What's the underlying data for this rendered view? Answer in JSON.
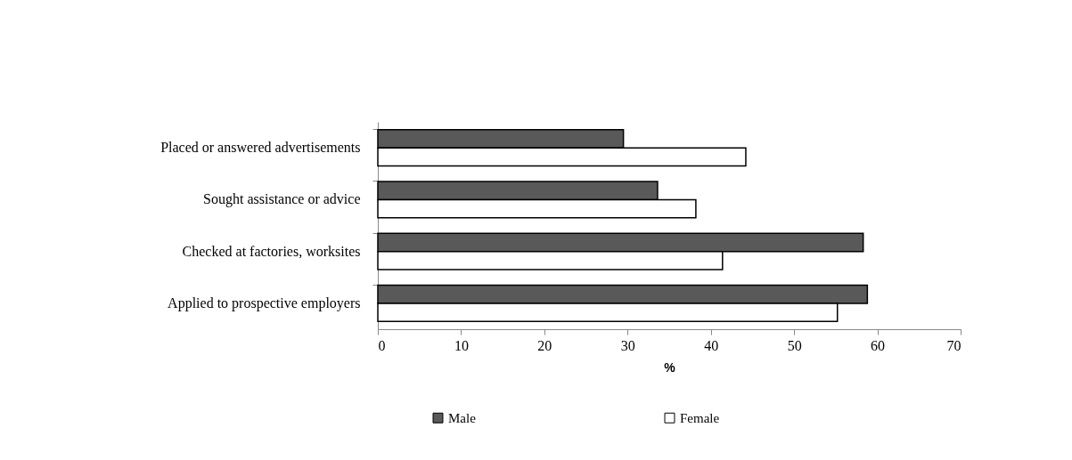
{
  "chart_data": {
    "type": "bar",
    "orientation": "horizontal",
    "categories": [
      "Placed or answered advertisements",
      "Sought assistance or advice",
      "Checked at factories, worksites",
      "Applied to prospective employers"
    ],
    "series": [
      {
        "name": "Male",
        "color": "#595959",
        "values": [
          29.5,
          33.6,
          58.3,
          58.8
        ]
      },
      {
        "name": "Female",
        "color": "#ffffff",
        "values": [
          44.2,
          38.2,
          41.4,
          55.2
        ]
      }
    ],
    "xlabel": "%",
    "xlim": [
      0,
      70
    ],
    "xticks": [
      0,
      10,
      20,
      30,
      40,
      50,
      60,
      70
    ],
    "grid": false,
    "legend": "bottom"
  }
}
